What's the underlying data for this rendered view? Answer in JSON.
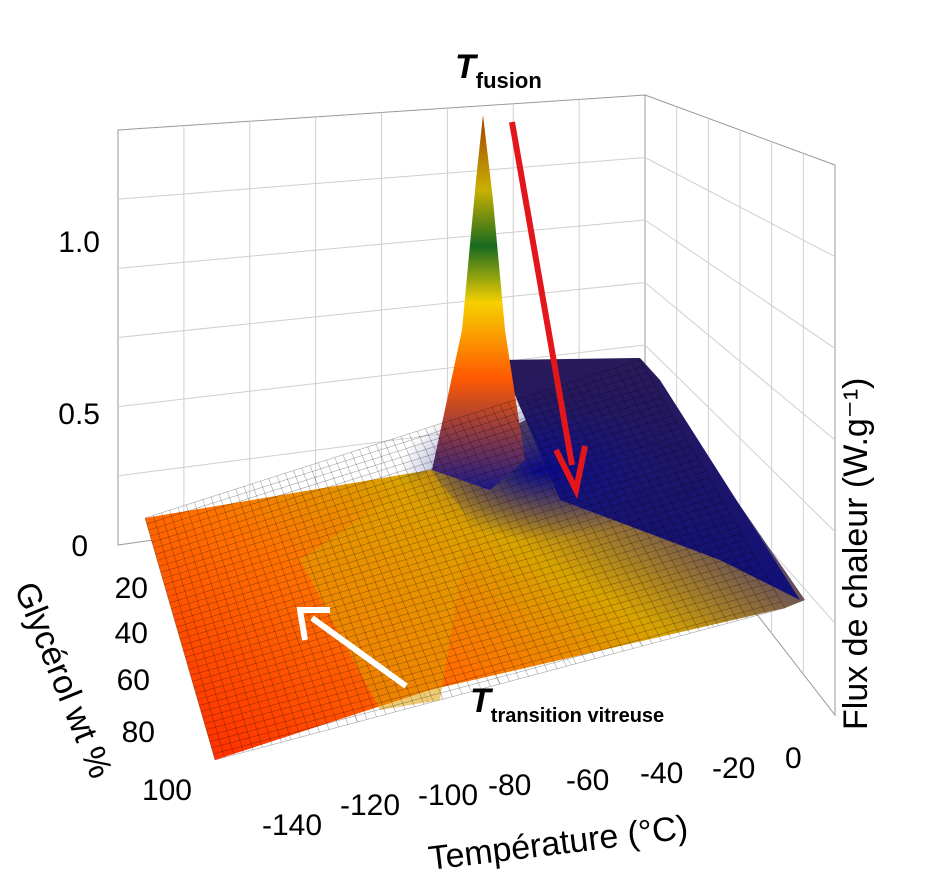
{
  "chart_data": {
    "type": "surface3d",
    "title": "",
    "xlabel": "Température (°C)",
    "ylabel": "Glycérol  wt %",
    "zlabel": "Flux de chaleur (W.g⁻¹)",
    "x_ticks": [
      "-140",
      "-120",
      "-100",
      "-80",
      "-60",
      "-40",
      "-20",
      "0"
    ],
    "y_ticks": [
      "0",
      "20",
      "40",
      "60",
      "80",
      "100"
    ],
    "z_ticks": [
      "0",
      "0.5",
      "1.0"
    ],
    "xlim": [
      -150,
      0
    ],
    "ylim": [
      0,
      100
    ],
    "zlim": [
      0,
      1.3
    ],
    "grid": true,
    "colormap": [
      "#ff2000",
      "#ff6a00",
      "#e8a800",
      "#f0d000",
      "#1a6a1a",
      "#0a0a80",
      "#2a1060"
    ],
    "series": [
      {
        "glycerol_wt_pct": 0,
        "transition": "fusion",
        "peak_temperature": -80,
        "peak_heat_flow": 1.25
      },
      {
        "glycerol_wt_pct": 10,
        "transition": "fusion",
        "peak_temperature": -82,
        "peak_heat_flow": 0.75
      },
      {
        "glycerol_wt_pct": 20,
        "transition": "fusion",
        "peak_temperature": -85,
        "peak_heat_flow": 0.35
      },
      {
        "glycerol_wt_pct": 40,
        "transition": "glass",
        "peak_temperature": -95,
        "peak_heat_flow": 0.12
      },
      {
        "glycerol_wt_pct": 70,
        "transition": "glass",
        "peak_temperature": -100,
        "peak_heat_flow": 0.08
      },
      {
        "glycerol_wt_pct": 100,
        "transition": "glass",
        "peak_temperature": -105,
        "peak_heat_flow": 0.05
      }
    ],
    "annotations": [
      {
        "symbol": "T",
        "subscript": "fusion",
        "color": "#e3161c"
      },
      {
        "symbol": "T",
        "subscript": "transition vitreuse",
        "color": "#000000"
      }
    ]
  }
}
